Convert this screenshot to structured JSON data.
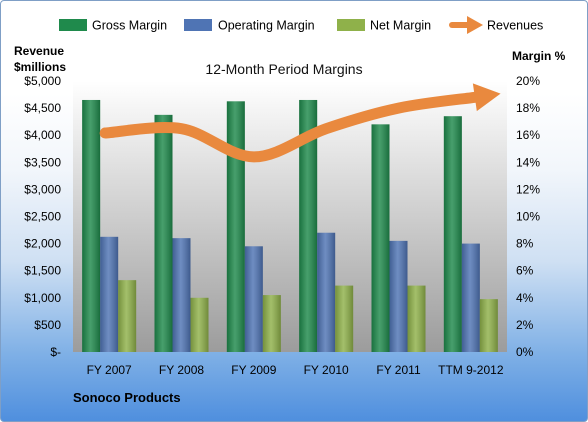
{
  "company": "Sonoco Products",
  "colors": {
    "gross": "#1f8a4c",
    "operating": "#4f74b4",
    "net": "#8fb14a",
    "revenues": "#e9893e",
    "plot_top": "#ffffff",
    "plot_bottom": "#9c9c9c"
  },
  "chart_data": {
    "type": "bar",
    "title": "12-Month Period Margins",
    "ylabel_left": [
      "Revenue",
      "$millions"
    ],
    "ylabel_right": "Margin %",
    "categories": [
      "FY 2007",
      "FY 2008",
      "FY 2009",
      "FY 2010",
      "FY 2011",
      "TTM 9-2012"
    ],
    "series": [
      {
        "name": "Gross Margin",
        "axis": "right",
        "values": [
          18.6,
          17.5,
          18.5,
          18.6,
          16.8,
          17.4
        ]
      },
      {
        "name": "Operating Margin",
        "axis": "right",
        "values": [
          8.5,
          8.4,
          7.8,
          8.8,
          8.2,
          8.0
        ]
      },
      {
        "name": "Net Margin",
        "axis": "right",
        "values": [
          5.3,
          4.0,
          4.2,
          4.9,
          4.9,
          3.9
        ]
      },
      {
        "name": "Revenues",
        "type": "line",
        "axis": "left",
        "values": [
          4040,
          4120,
          3600,
          4120,
          4500,
          4700
        ]
      }
    ],
    "ylim_left": [
      0,
      5000
    ],
    "yticks_left": [
      "$-",
      "$500",
      "$1,000",
      "$1,500",
      "$2,000",
      "$2,500",
      "$3,000",
      "$3,500",
      "$4,000",
      "$4,500",
      "$5,000"
    ],
    "ylim_right": [
      0,
      20
    ],
    "yticks_right": [
      "0%",
      "2%",
      "4%",
      "6%",
      "8%",
      "10%",
      "12%",
      "14%",
      "16%",
      "18%",
      "20%"
    ],
    "legend": "top",
    "grid": false
  }
}
